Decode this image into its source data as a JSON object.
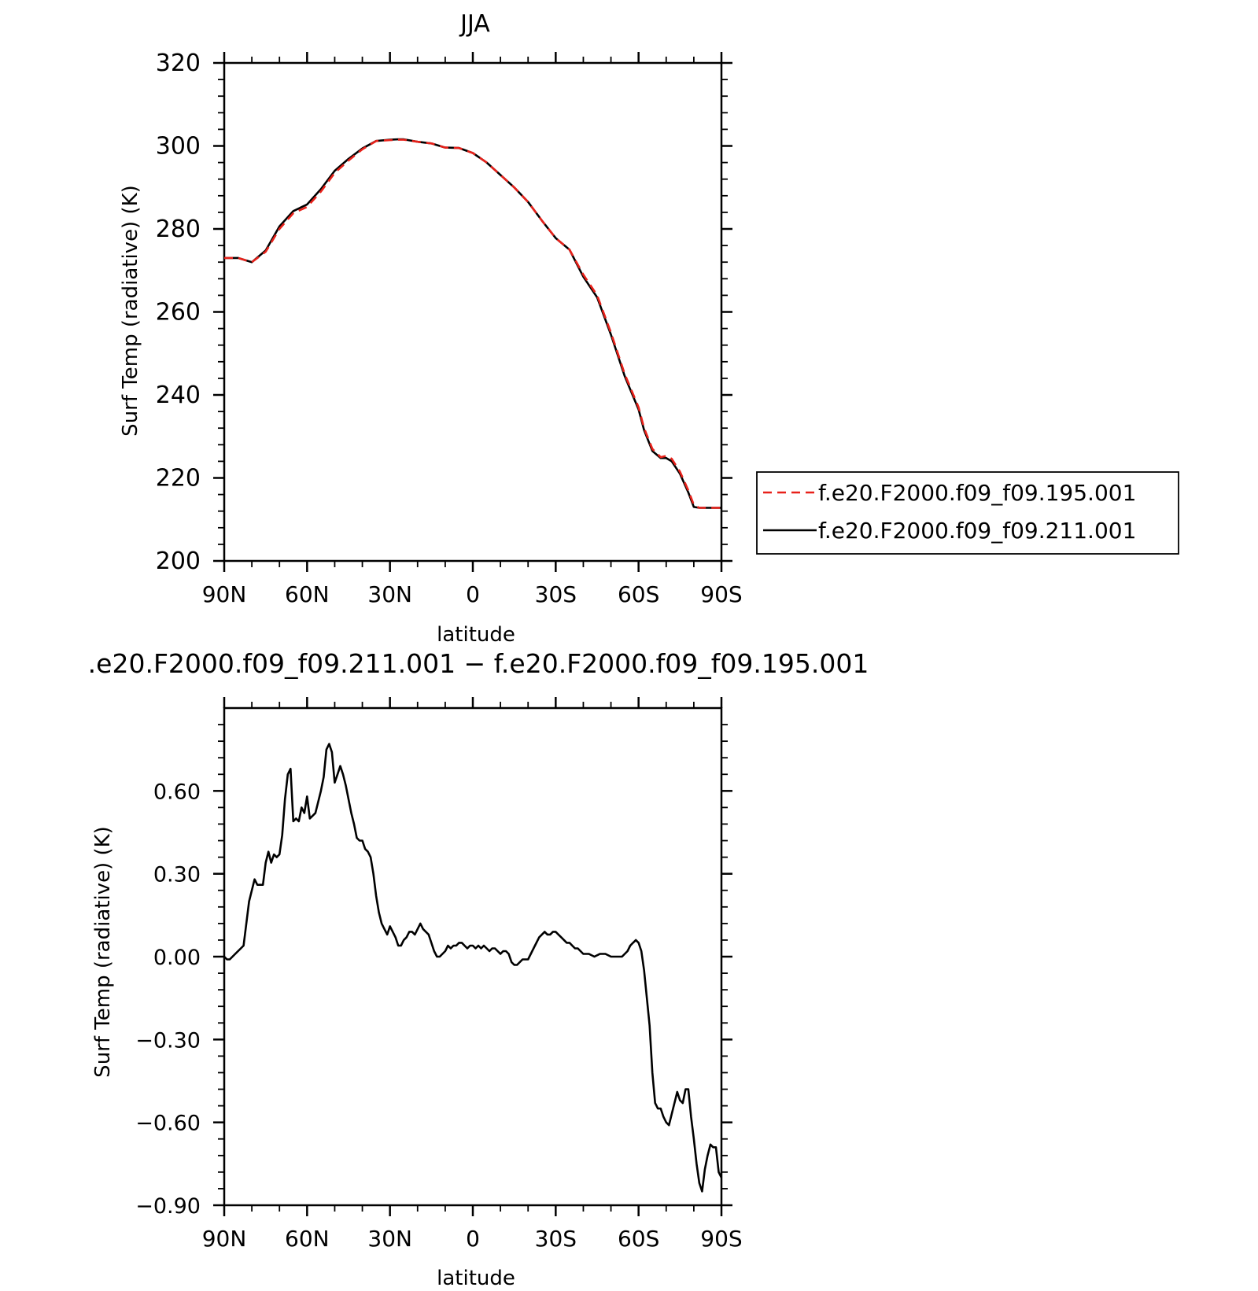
{
  "chart_data": [
    {
      "type": "line",
      "title": "JJA",
      "xlabel": "latitude",
      "ylabel": "Surf Temp (radiative) (K)",
      "xlim": [
        90,
        -90
      ],
      "ylim": [
        200,
        320
      ],
      "x_ticks": [
        {
          "v": 90,
          "label": "90N"
        },
        {
          "v": 60,
          "label": "60N"
        },
        {
          "v": 30,
          "label": "30N"
        },
        {
          "v": 0,
          "label": "0"
        },
        {
          "v": -30,
          "label": "30S"
        },
        {
          "v": -60,
          "label": "60S"
        },
        {
          "v": -90,
          "label": "90S"
        }
      ],
      "y_ticks": [
        {
          "v": 200,
          "label": "200"
        },
        {
          "v": 220,
          "label": "220"
        },
        {
          "v": 240,
          "label": "240"
        },
        {
          "v": 260,
          "label": "260"
        },
        {
          "v": 280,
          "label": "280"
        },
        {
          "v": 300,
          "label": "300"
        },
        {
          "v": 320,
          "label": "320"
        }
      ],
      "legend": {
        "placement": "right"
      },
      "x": [
        90,
        85,
        80,
        75,
        70,
        65,
        60,
        55,
        50,
        45,
        40,
        35,
        30,
        27,
        25,
        20,
        15,
        10,
        5,
        0,
        -5,
        -10,
        -15,
        -20,
        -25,
        -30,
        -35,
        -40,
        -45,
        -50,
        -55,
        -60,
        -62,
        -65,
        -68,
        -70,
        -72,
        -75,
        -78,
        -80,
        -82,
        -84,
        -85,
        -87,
        -89,
        -90
      ],
      "series": [
        {
          "name": "f.e20.F2000.f09_f09.195.001",
          "color": "#e8211a",
          "dash": true,
          "values": [
            273.0,
            273.0,
            272.0,
            274.5,
            280.0,
            283.8,
            285.3,
            289.0,
            293.5,
            296.5,
            299.2,
            301.2,
            301.4,
            301.5,
            301.5,
            301.0,
            300.6,
            299.6,
            299.5,
            298.3,
            296.0,
            293.0,
            290.0,
            286.5,
            282.0,
            277.8,
            275.0,
            269.0,
            264.0,
            255.0,
            245.0,
            237.0,
            232.0,
            227.0,
            225.0,
            225.3,
            224.6,
            221.5,
            217.0,
            213.5,
            212.8,
            212.8,
            212.8,
            212.8,
            212.8,
            212.8
          ]
        },
        {
          "name": "f.e20.F2000.f09_f09.211.001",
          "color": "#000000",
          "dash": false,
          "values": [
            273.0,
            273.0,
            272.0,
            274.8,
            280.6,
            284.3,
            285.9,
            289.6,
            294.0,
            296.9,
            299.4,
            301.2,
            301.5,
            301.6,
            301.6,
            301.0,
            300.6,
            299.6,
            299.5,
            298.3,
            296.0,
            293.0,
            290.0,
            286.5,
            282.0,
            277.8,
            275.0,
            268.5,
            263.5,
            254.5,
            244.5,
            236.5,
            231.5,
            226.5,
            224.8,
            224.8,
            224.0,
            221.0,
            216.5,
            213.0,
            212.8,
            212.8,
            212.8,
            212.8,
            212.8,
            212.8
          ]
        }
      ]
    },
    {
      "type": "line",
      "title": ".e20.F2000.f09_f09.211.001 − f.e20.F2000.f09_f09.195.001",
      "xlabel": "latitude",
      "ylabel": "Surf Temp (radiative) (K)",
      "xlim": [
        90,
        -90
      ],
      "ylim": [
        -0.9,
        0.9
      ],
      "x_ticks": [
        {
          "v": 90,
          "label": "90N"
        },
        {
          "v": 60,
          "label": "60N"
        },
        {
          "v": 30,
          "label": "30N"
        },
        {
          "v": 0,
          "label": "0"
        },
        {
          "v": -30,
          "label": "30S"
        },
        {
          "v": -60,
          "label": "60S"
        },
        {
          "v": -90,
          "label": "90S"
        }
      ],
      "y_ticks": [
        {
          "v": -0.9,
          "label": "−0.90"
        },
        {
          "v": -0.6,
          "label": "−0.60"
        },
        {
          "v": -0.3,
          "label": "−0.30"
        },
        {
          "v": 0.0,
          "label": "0.00"
        },
        {
          "v": 0.3,
          "label": "0.30"
        },
        {
          "v": 0.6,
          "label": "0.60"
        }
      ],
      "x": [
        90,
        89,
        88,
        86,
        84,
        83,
        82,
        81,
        80,
        79,
        78,
        77,
        76,
        75,
        74,
        73,
        72,
        71,
        70,
        69,
        68,
        67,
        66,
        65,
        64,
        63,
        62,
        61,
        60,
        59,
        58,
        57,
        56,
        55,
        54,
        53,
        52,
        51,
        50,
        49,
        48,
        47,
        46,
        45,
        44,
        43,
        42,
        41,
        40,
        39,
        38,
        37,
        36,
        35,
        34,
        33,
        32,
        31,
        30,
        29,
        28,
        27,
        26,
        25,
        24,
        23,
        22,
        21,
        20,
        19,
        18,
        17,
        16,
        15,
        14,
        13,
        12,
        11,
        10,
        9,
        8,
        7,
        6,
        5,
        4,
        3,
        2,
        1,
        0,
        -1,
        -2,
        -3,
        -4,
        -5,
        -6,
        -7,
        -8,
        -9,
        -10,
        -11,
        -12,
        -13,
        -14,
        -15,
        -16,
        -17,
        -18,
        -19,
        -20,
        -21,
        -22,
        -23,
        -24,
        -25,
        -26,
        -27,
        -28,
        -29,
        -30,
        -31,
        -32,
        -33,
        -34,
        -35,
        -36,
        -37,
        -38,
        -39,
        -40,
        -42,
        -44,
        -46,
        -48,
        -50,
        -52,
        -54,
        -55,
        -56,
        -57,
        -58,
        -59,
        -60,
        -61,
        -62,
        -63,
        -64,
        -65,
        -66,
        -67,
        -68,
        -69,
        -70,
        -71,
        -72,
        -73,
        -74,
        -75,
        -76,
        -77,
        -78,
        -79,
        -80,
        -81,
        -82,
        -83,
        -84,
        -85,
        -86,
        -87,
        -88,
        -89,
        -90
      ],
      "series": [
        {
          "name": "",
          "color": "#000000",
          "dash": false,
          "values": [
            0.0,
            -0.01,
            -0.01,
            0.01,
            0.03,
            0.04,
            0.12,
            0.2,
            0.24,
            0.28,
            0.26,
            0.26,
            0.26,
            0.34,
            0.38,
            0.34,
            0.37,
            0.36,
            0.37,
            0.44,
            0.57,
            0.66,
            0.68,
            0.49,
            0.5,
            0.49,
            0.54,
            0.52,
            0.58,
            0.5,
            0.51,
            0.52,
            0.56,
            0.6,
            0.65,
            0.75,
            0.77,
            0.74,
            0.63,
            0.66,
            0.69,
            0.66,
            0.62,
            0.57,
            0.52,
            0.48,
            0.43,
            0.42,
            0.42,
            0.39,
            0.38,
            0.36,
            0.3,
            0.22,
            0.16,
            0.12,
            0.1,
            0.08,
            0.11,
            0.09,
            0.07,
            0.04,
            0.04,
            0.06,
            0.07,
            0.09,
            0.09,
            0.08,
            0.1,
            0.12,
            0.1,
            0.09,
            0.08,
            0.05,
            0.02,
            0.0,
            0.0,
            0.01,
            0.02,
            0.04,
            0.03,
            0.04,
            0.04,
            0.05,
            0.05,
            0.04,
            0.03,
            0.04,
            0.04,
            0.03,
            0.04,
            0.03,
            0.04,
            0.03,
            0.02,
            0.03,
            0.03,
            0.02,
            0.01,
            0.02,
            0.02,
            0.01,
            -0.02,
            -0.03,
            -0.03,
            -0.02,
            -0.01,
            -0.01,
            -0.01,
            0.01,
            0.03,
            0.05,
            0.07,
            0.08,
            0.09,
            0.08,
            0.08,
            0.09,
            0.09,
            0.08,
            0.07,
            0.06,
            0.05,
            0.05,
            0.04,
            0.03,
            0.03,
            0.02,
            0.01,
            0.01,
            0.0,
            0.01,
            0.01,
            0.0,
            0.0,
            0.0,
            0.01,
            0.02,
            0.04,
            0.05,
            0.06,
            0.05,
            0.02,
            -0.05,
            -0.15,
            -0.25,
            -0.42,
            -0.53,
            -0.55,
            -0.55,
            -0.58,
            -0.6,
            -0.61,
            -0.57,
            -0.53,
            -0.49,
            -0.52,
            -0.53,
            -0.48,
            -0.48,
            -0.58,
            -0.66,
            -0.75,
            -0.82,
            -0.85,
            -0.77,
            -0.72,
            -0.68,
            -0.69,
            -0.69,
            -0.78,
            -0.8
          ]
        }
      ]
    }
  ]
}
